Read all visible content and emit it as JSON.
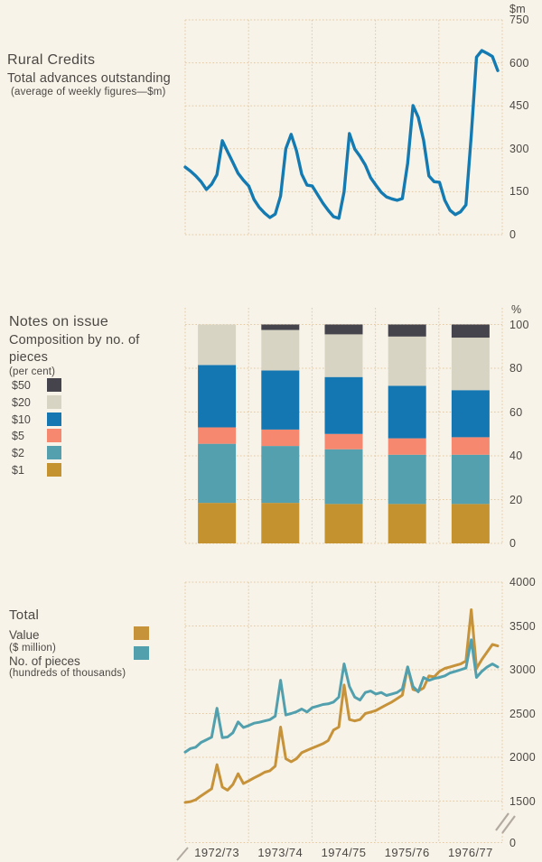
{
  "page": {
    "background": "#f7f3e8",
    "grid_color": "#e5c9a0",
    "text_color": "#4b4744",
    "break_mark_color": "#b2aaa2"
  },
  "x_axis": {
    "labels": [
      "1972/73",
      "1973/74",
      "1974/75",
      "1975/76",
      "1976/77"
    ]
  },
  "chart_data": [
    {
      "type": "line",
      "title": "Rural Credits",
      "subtitle": "Total advances outstanding",
      "note": "(average of weekly figures—$m)",
      "ylabel": "$m",
      "ylim": [
        0,
        750
      ],
      "yticks": [
        750,
        600,
        450,
        300,
        150,
        0
      ],
      "x_span": "monthly points, July 1972 - June 1977",
      "grid": true,
      "legend_position": "none",
      "series": [
        {
          "name": "Total advances outstanding ($m)",
          "color": "#147ab2",
          "values": [
            236,
            222,
            205,
            185,
            158,
            176,
            210,
            328,
            290,
            252,
            214,
            190,
            170,
            123,
            95,
            75,
            60,
            72,
            135,
            300,
            350,
            293,
            211,
            173,
            170,
            140,
            110,
            85,
            63,
            57,
            150,
            353,
            299,
            274,
            243,
            199,
            173,
            148,
            132,
            125,
            120,
            126,
            250,
            451,
            410,
            330,
            205,
            185,
            183,
            120,
            85,
            70,
            80,
            104,
            347,
            620,
            643,
            633,
            622,
            573
          ]
        }
      ]
    },
    {
      "type": "bar",
      "subtype": "stacked-percent",
      "title": "Notes on issue",
      "subtitle": "Composition by no. of pieces",
      "note": "(per cent)",
      "ylabel": "%",
      "ylim": [
        0,
        100
      ],
      "yticks": [
        100,
        80,
        60,
        40,
        20,
        0
      ],
      "categories": [
        "1972/73",
        "1973/74",
        "1974/75",
        "1975/76",
        "1976/77"
      ],
      "legend_order": [
        "$50",
        "$20",
        "$10",
        "$5",
        "$2",
        "$1"
      ],
      "legend_position": "left",
      "series": [
        {
          "name": "$1",
          "color": "#c4922e",
          "values": [
            18.5,
            18.5,
            18,
            18,
            18
          ]
        },
        {
          "name": "$2",
          "color": "#55a0ae",
          "values": [
            27,
            26,
            25,
            22.5,
            22.5
          ]
        },
        {
          "name": "$5",
          "color": "#f5886e",
          "values": [
            7.5,
            7.5,
            7,
            7.5,
            8
          ]
        },
        {
          "name": "$10",
          "color": "#1477b2",
          "values": [
            28.5,
            27,
            26,
            24,
            21.5
          ]
        },
        {
          "name": "$20",
          "color": "#d8d4c3",
          "values": [
            18.5,
            18.5,
            19.5,
            22.5,
            24
          ]
        },
        {
          "name": "$50",
          "color": "#45434c",
          "values": [
            0,
            2.5,
            4.5,
            5.5,
            6
          ]
        }
      ]
    },
    {
      "type": "line",
      "title": "Total",
      "legend": [
        {
          "label": "Value",
          "note": "($ million)"
        },
        {
          "label": "No. of pieces",
          "note": "(hundreds of thousands)"
        }
      ],
      "ylim": [
        0,
        4000
      ],
      "yticks": [
        4000,
        3500,
        3000,
        2500,
        2000,
        1500,
        0
      ],
      "axis_break": "axis compressed between 0 and 1500 (break mark on axis)",
      "categories": [
        "1972/73",
        "1973/74",
        "1974/75",
        "1975/76",
        "1976/77"
      ],
      "x_span": "monthly points, July 1972 - June 1977",
      "series": [
        {
          "name": "Value ($ million)",
          "color": "#c6923a",
          "values": [
            1450,
            1480,
            1515,
            1560,
            1600,
            1640,
            1915,
            1660,
            1625,
            1690,
            1812,
            1700,
            1731,
            1765,
            1795,
            1830,
            1846,
            1900,
            2345,
            1984,
            1950,
            1984,
            2053,
            2080,
            2105,
            2130,
            2156,
            2191,
            2311,
            2345,
            2826,
            2431,
            2415,
            2431,
            2500,
            2517,
            2534,
            2568,
            2600,
            2631,
            2670,
            2710,
            3032,
            2775,
            2757,
            2792,
            2929,
            2919,
            2981,
            3015,
            3032,
            3049,
            3066,
            3100,
            3686,
            3015,
            3118,
            3203,
            3289,
            3272
          ]
        },
        {
          "name": "No. of pieces (hundreds of thousands)",
          "color": "#52a0ae",
          "values": [
            2060,
            2100,
            2115,
            2170,
            2200,
            2230,
            2560,
            2225,
            2232,
            2280,
            2404,
            2340,
            2363,
            2390,
            2400,
            2415,
            2430,
            2470,
            2880,
            2483,
            2500,
            2520,
            2552,
            2518,
            2568,
            2585,
            2603,
            2610,
            2631,
            2688,
            3067,
            2809,
            2688,
            2654,
            2740,
            2757,
            2723,
            2740,
            2706,
            2723,
            2740,
            2781,
            3032,
            2809,
            2747,
            2912,
            2878,
            2900,
            2912,
            2930,
            2964,
            2981,
            3000,
            3020,
            3342,
            2912,
            2981,
            3032,
            3066,
            3032
          ]
        }
      ]
    }
  ]
}
